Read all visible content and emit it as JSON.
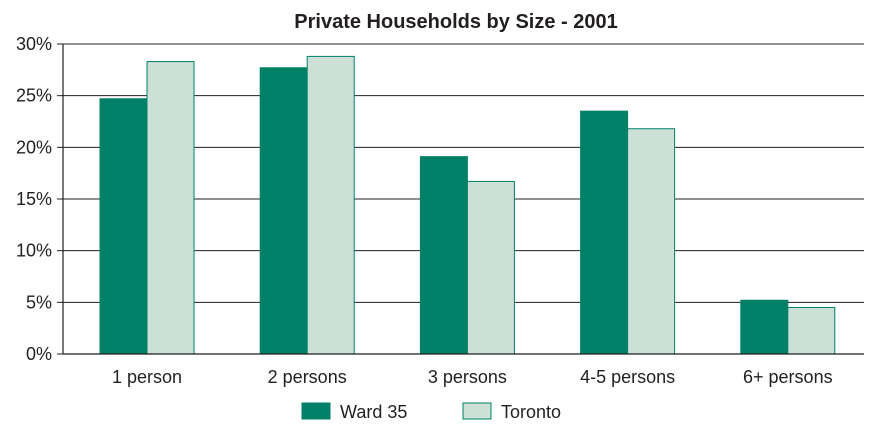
{
  "chart_data": {
    "type": "bar",
    "title": "Private Households by Size - 2001",
    "categories": [
      "1 person",
      "2 persons",
      "3 persons",
      "4-5 persons",
      "6+ persons"
    ],
    "series": [
      {
        "name": "Ward 35",
        "values": [
          24.7,
          27.7,
          19.1,
          23.5,
          5.2
        ],
        "color": "#008066"
      },
      {
        "name": "Toronto",
        "values": [
          28.3,
          28.8,
          16.7,
          21.8,
          4.5
        ],
        "color": "#cce0d8"
      }
    ],
    "ylim": [
      0,
      30
    ],
    "yticks": [
      "0%",
      "5%",
      "10%",
      "15%",
      "20%",
      "25%",
      "30%"
    ],
    "grid": true,
    "legend": "bottom",
    "xlabel": "",
    "ylabel": ""
  }
}
